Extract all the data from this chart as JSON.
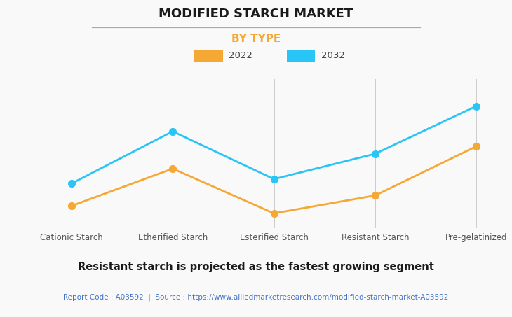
{
  "title": "MODIFIED STARCH MARKET",
  "subtitle": "BY TYPE",
  "categories": [
    "Cationic Starch",
    "Etherified Starch",
    "Esterified Starch",
    "Resistant Starch",
    "Pre-gelatinized"
  ],
  "series": [
    {
      "label": "2022",
      "color": "#F5A833",
      "values": [
        1.5,
        4.0,
        1.0,
        2.2,
        5.5
      ]
    },
    {
      "label": "2032",
      "color": "#29C5F6",
      "values": [
        3.0,
        6.5,
        3.3,
        5.0,
        8.2
      ]
    }
  ],
  "ylim": [
    0,
    10
  ],
  "footnote": "Resistant starch is projected as the fastest growing segment",
  "source_text": "Report Code : A03592  |  Source : https://www.alliedmarketresearch.com/modified-starch-market-A03592",
  "background_color": "#f9f9f9",
  "grid_color": "#cccccc",
  "title_fontsize": 13,
  "subtitle_fontsize": 11,
  "subtitle_color": "#F5A833",
  "source_color": "#4472C4",
  "footnote_fontsize": 10.5,
  "marker_size": 7,
  "line_width": 2
}
